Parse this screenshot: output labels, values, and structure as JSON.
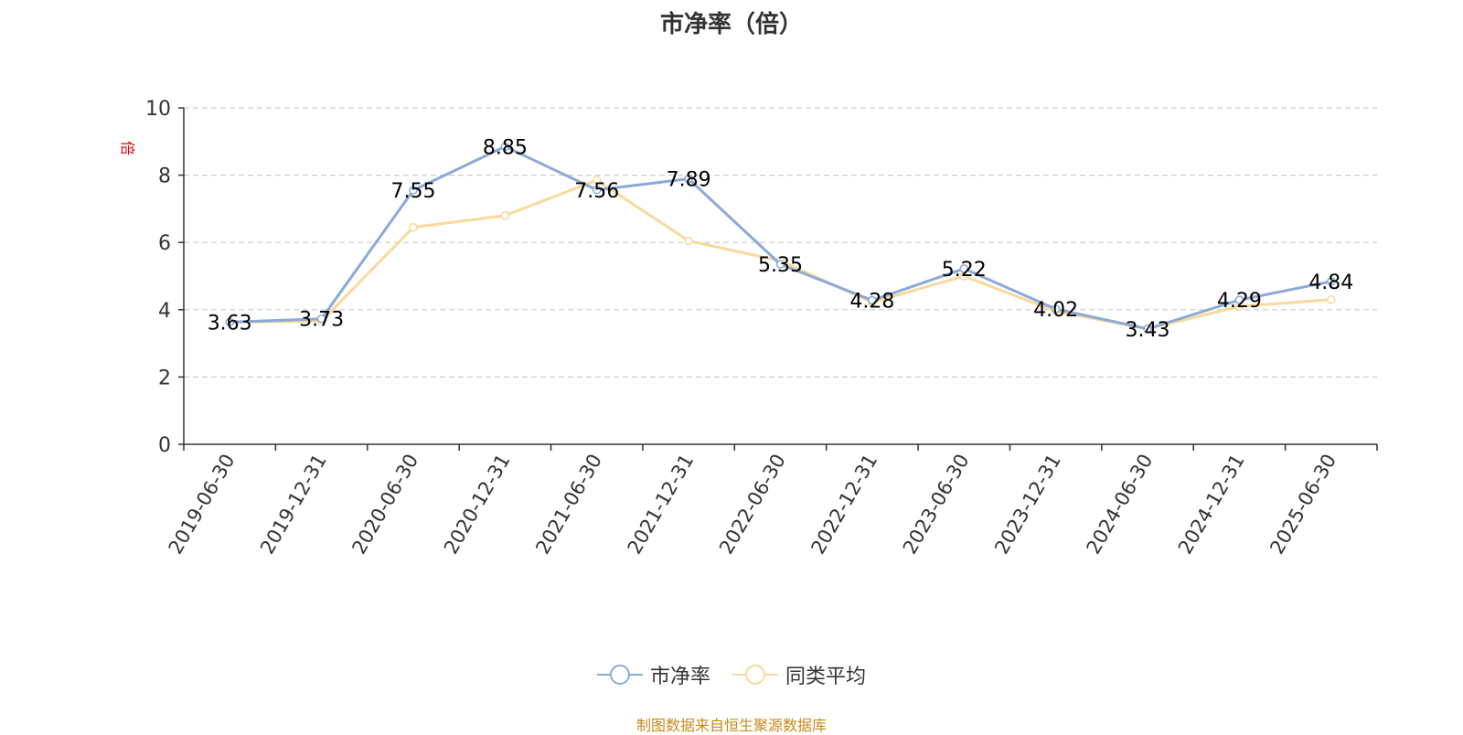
{
  "title": "市净率（倍）",
  "ylabel": "倍",
  "source": "制图数据来自恒生聚源数据库",
  "colors": {
    "series1": "#8aaad8",
    "series2": "#f9d99b",
    "grid": "#cccccc",
    "axis": "#333333",
    "source": "#c8891a"
  },
  "chart_data": {
    "type": "line",
    "title": "市净率（倍）",
    "ylabel": "倍",
    "ylim": [
      0,
      10
    ],
    "yticks": [
      0,
      2,
      4,
      6,
      8,
      10
    ],
    "grid": true,
    "legend_position": "bottom",
    "categories": [
      "2019-06-30",
      "2019-12-31",
      "2020-06-30",
      "2020-12-31",
      "2021-06-30",
      "2021-12-31",
      "2022-06-30",
      "2022-12-31",
      "2023-06-30",
      "2023-12-31",
      "2024-06-30",
      "2024-12-31",
      "2025-06-30"
    ],
    "series": [
      {
        "name": "市净率",
        "values": [
          3.63,
          3.73,
          7.55,
          8.85,
          7.56,
          7.89,
          5.35,
          4.28,
          5.22,
          4.02,
          3.43,
          4.29,
          4.84
        ],
        "labels": [
          "3.63",
          "3.73",
          "7.55",
          "8.85",
          "7.56",
          "7.89",
          "5.35",
          "4.28",
          "5.22",
          "4.02",
          "3.43",
          "4.29",
          "4.84"
        ]
      },
      {
        "name": "同类平均",
        "values": [
          3.63,
          3.66,
          6.45,
          6.8,
          7.85,
          6.05,
          5.45,
          4.22,
          5.0,
          3.95,
          3.43,
          4.1,
          4.3
        ]
      }
    ]
  }
}
